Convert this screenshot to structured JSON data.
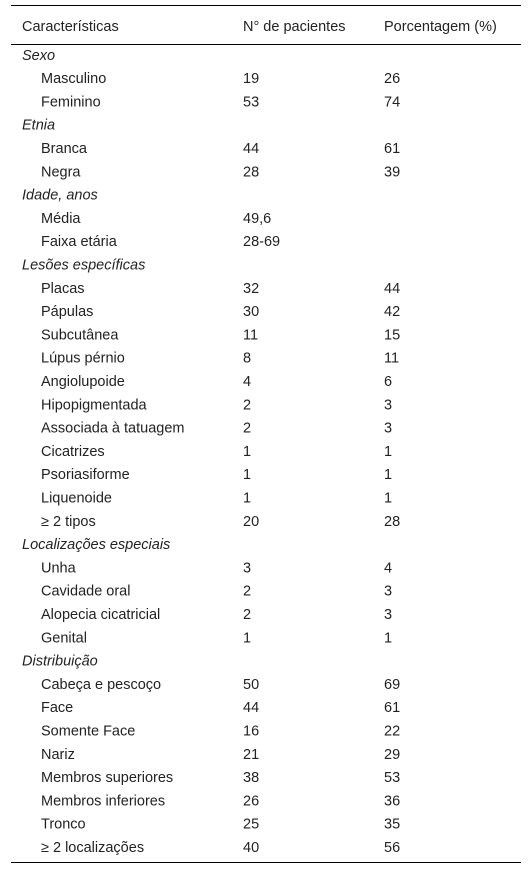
{
  "header": [
    "Características",
    "N° de pacientes",
    "Porcentagem (%)"
  ],
  "sections": [
    {
      "title": "Sexo",
      "rows": [
        [
          "Masculino",
          19,
          26
        ],
        [
          "Feminino",
          53,
          74
        ]
      ]
    },
    {
      "title": "Etnia",
      "rows": [
        [
          "Branca",
          44,
          61
        ],
        [
          "Negra",
          28,
          39
        ]
      ]
    },
    {
      "title": "Idade, anos",
      "rows": [
        [
          "Média",
          "49,6"
        ],
        [
          "Faixa etária",
          "28-69"
        ]
      ]
    },
    {
      "title": "Lesões específicas",
      "rows": [
        [
          "Placas",
          32,
          44
        ],
        [
          "Pápulas",
          30,
          42
        ],
        [
          "Subcutânea",
          11,
          15
        ],
        [
          "Lúpus pérnio",
          8,
          11
        ],
        [
          "Angiolupoide",
          4,
          6
        ],
        [
          "Hipopigmentada",
          2,
          3
        ],
        [
          "Associada à tatuagem",
          2,
          3
        ],
        [
          "Cicatrizes",
          1,
          1
        ],
        [
          "Psoriasiforme",
          1,
          1
        ],
        [
          "Liquenoide",
          1,
          1
        ],
        [
          "≥ 2 tipos",
          20,
          28
        ]
      ]
    },
    {
      "title": "Localizações especiais",
      "rows": [
        [
          "Unha",
          3,
          4
        ],
        [
          "Cavidade oral",
          2,
          3
        ],
        [
          "Alopecia cicatricial",
          2,
          3
        ],
        [
          "Genital",
          1,
          1
        ]
      ]
    },
    {
      "title": "Distribuição",
      "rows": [
        [
          "Cabeça e pescoço",
          50,
          69
        ],
        [
          "Face",
          44,
          61
        ],
        [
          "Somente Face",
          16,
          22
        ],
        [
          "Nariz",
          21,
          29
        ],
        [
          "Membros superiores",
          38,
          53
        ],
        [
          "Membros inferiores",
          26,
          36
        ],
        [
          "Tronco",
          25,
          35
        ],
        [
          "≥ 2 localizações",
          40,
          56
        ]
      ]
    }
  ]
}
